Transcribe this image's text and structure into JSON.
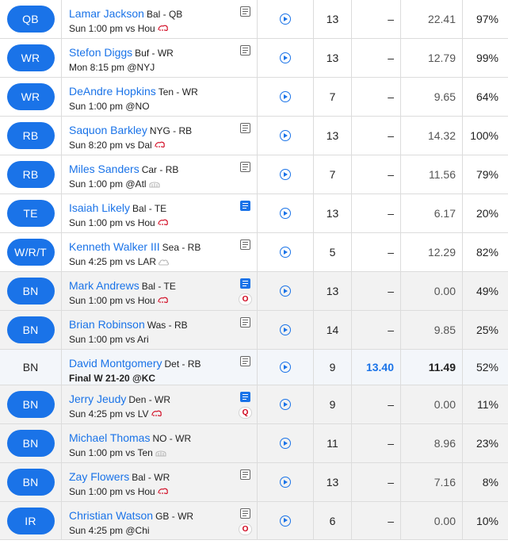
{
  "roster": [
    {
      "slot": "QB",
      "name": "Lamar Jackson",
      "team_pos": "Bal - QB",
      "game": "Sun 1:00 pm vs Hou",
      "weather": "wind",
      "note": "plain",
      "status": "",
      "opr": "13",
      "actual": "–",
      "proj": "22.41",
      "pct": "97%",
      "kind": "starter"
    },
    {
      "slot": "WR",
      "name": "Stefon Diggs",
      "team_pos": "Buf - WR",
      "game": "Mon 8:15 pm @NYJ",
      "weather": "",
      "note": "plain",
      "status": "",
      "opr": "13",
      "actual": "–",
      "proj": "12.79",
      "pct": "99%",
      "kind": "starter"
    },
    {
      "slot": "WR",
      "name": "DeAndre Hopkins",
      "team_pos": "Ten - WR",
      "game": "Sun 1:00 pm @NO",
      "weather": "",
      "note": "",
      "status": "",
      "opr": "7",
      "actual": "–",
      "proj": "9.65",
      "pct": "64%",
      "kind": "starter"
    },
    {
      "slot": "RB",
      "name": "Saquon Barkley",
      "team_pos": "NYG - RB",
      "game": "Sun 8:20 pm vs Dal",
      "weather": "wind",
      "note": "plain",
      "status": "",
      "opr": "13",
      "actual": "–",
      "proj": "14.32",
      "pct": "100%",
      "kind": "starter"
    },
    {
      "slot": "RB",
      "name": "Miles Sanders",
      "team_pos": "Car - RB",
      "game": "Sun 1:00 pm @Atl",
      "weather": "dome",
      "note": "plain",
      "status": "",
      "opr": "7",
      "actual": "–",
      "proj": "11.56",
      "pct": "79%",
      "kind": "starter"
    },
    {
      "slot": "TE",
      "name": "Isaiah Likely",
      "team_pos": "Bal - TE",
      "game": "Sun 1:00 pm vs Hou",
      "weather": "wind",
      "note": "blue",
      "status": "",
      "opr": "13",
      "actual": "–",
      "proj": "6.17",
      "pct": "20%",
      "kind": "starter"
    },
    {
      "slot": "W/R/T",
      "name": "Kenneth Walker III",
      "team_pos": "Sea - RB",
      "game": "Sun 4:25 pm vs LAR",
      "weather": "cloud",
      "note": "plain",
      "status": "",
      "opr": "5",
      "actual": "–",
      "proj": "12.29",
      "pct": "82%",
      "kind": "starter"
    },
    {
      "slot": "BN",
      "name": "Mark Andrews",
      "team_pos": "Bal - TE",
      "game": "Sun 1:00 pm vs Hou",
      "weather": "wind",
      "note": "blue",
      "status": "O",
      "opr": "13",
      "actual": "–",
      "proj": "0.00",
      "pct": "49%",
      "kind": "bench"
    },
    {
      "slot": "BN",
      "name": "Brian Robinson",
      "team_pos": "Was - RB",
      "game": "Sun 1:00 pm vs Ari",
      "weather": "",
      "note": "plain",
      "status": "",
      "opr": "14",
      "actual": "–",
      "proj": "9.85",
      "pct": "25%",
      "kind": "bench"
    },
    {
      "slot": "BN",
      "name": "David Montgomery",
      "team_pos": "Det - RB",
      "game": "Final W 21-20 @KC",
      "weather": "",
      "note": "plain",
      "status": "",
      "opr": "9",
      "actual": "13.40",
      "proj": "11.49",
      "pct": "52%",
      "kind": "played"
    },
    {
      "slot": "BN",
      "name": "Jerry Jeudy",
      "team_pos": "Den - WR",
      "game": "Sun 4:25 pm vs LV",
      "weather": "wind",
      "note": "blue",
      "status": "Q",
      "opr": "9",
      "actual": "–",
      "proj": "0.00",
      "pct": "11%",
      "kind": "bench"
    },
    {
      "slot": "BN",
      "name": "Michael Thomas",
      "team_pos": "NO - WR",
      "game": "Sun 1:00 pm vs Ten",
      "weather": "dome",
      "note": "",
      "status": "",
      "opr": "11",
      "actual": "–",
      "proj": "8.96",
      "pct": "23%",
      "kind": "bench"
    },
    {
      "slot": "BN",
      "name": "Zay Flowers",
      "team_pos": "Bal - WR",
      "game": "Sun 1:00 pm vs Hou",
      "weather": "wind",
      "note": "plain",
      "status": "",
      "opr": "13",
      "actual": "–",
      "proj": "7.16",
      "pct": "8%",
      "kind": "bench"
    },
    {
      "slot": "IR",
      "name": "Christian Watson",
      "team_pos": "GB - WR",
      "game": "Sun 4:25 pm @Chi",
      "weather": "",
      "note": "plain",
      "status": "O",
      "opr": "6",
      "actual": "–",
      "proj": "0.00",
      "pct": "10%",
      "kind": "bench"
    }
  ],
  "colors": {
    "accent": "#1a73e8",
    "status_red": "#d0021b",
    "bench_bg": "#f2f2f2"
  }
}
